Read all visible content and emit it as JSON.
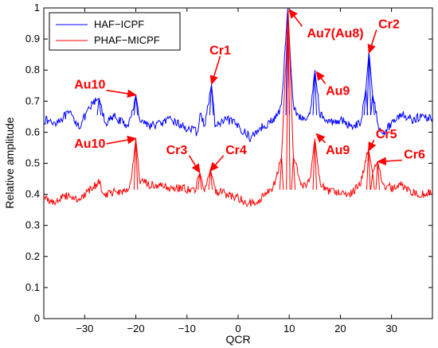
{
  "chart_data": {
    "type": "line",
    "xlabel": "QCR",
    "ylabel": "Relative amplitude",
    "xlim": [
      -38,
      38
    ],
    "ylim": [
      0,
      1
    ],
    "xticks": [
      -30,
      -20,
      -10,
      0,
      10,
      20,
      30
    ],
    "yticks": [
      0,
      0.1,
      0.2,
      0.3,
      0.4,
      0.5,
      0.6,
      0.7,
      0.8,
      0.9,
      1
    ],
    "grid": false,
    "legend_position": "top-left",
    "series": [
      {
        "name": "HAF−ICPF",
        "color": "#0000ff",
        "baseline": 0.635,
        "points": [
          [
            -38,
            0.64
          ],
          [
            -36,
            0.63
          ],
          [
            -33,
            0.66
          ],
          [
            -31,
            0.62
          ],
          [
            -28.5,
            0.69
          ],
          [
            -27.2,
            0.71
          ],
          [
            -26,
            0.63
          ],
          [
            -24,
            0.65
          ],
          [
            -22,
            0.62
          ],
          [
            -21,
            0.64
          ],
          [
            -20,
            0.72
          ],
          [
            -19.2,
            0.64
          ],
          [
            -17,
            0.62
          ],
          [
            -13,
            0.64
          ],
          [
            -11,
            0.62
          ],
          [
            -8,
            0.6
          ],
          [
            -7.3,
            0.66
          ],
          [
            -6.5,
            0.62
          ],
          [
            -5.2,
            0.755
          ],
          [
            -4.5,
            0.62
          ],
          [
            -2,
            0.64
          ],
          [
            0,
            0.62
          ],
          [
            2.5,
            0.58
          ],
          [
            4,
            0.61
          ],
          [
            7,
            0.64
          ],
          [
            8.5,
            0.68
          ],
          [
            9.7,
            1.0
          ],
          [
            10.8,
            0.68
          ],
          [
            12.5,
            0.64
          ],
          [
            14,
            0.65
          ],
          [
            15,
            0.8
          ],
          [
            16,
            0.66
          ],
          [
            17.5,
            0.63
          ],
          [
            20,
            0.64
          ],
          [
            22,
            0.62
          ],
          [
            24,
            0.63
          ],
          [
            25,
            0.74
          ],
          [
            25.6,
            0.86
          ],
          [
            26.3,
            0.72
          ],
          [
            27.5,
            0.62
          ],
          [
            28.6,
            0.6
          ],
          [
            30,
            0.63
          ],
          [
            32,
            0.66
          ],
          [
            34,
            0.64
          ],
          [
            36,
            0.65
          ],
          [
            38,
            0.645
          ]
        ]
      },
      {
        "name": "PHAF−MICPF",
        "color": "#ff0000",
        "baseline": 0.395,
        "points": [
          [
            -38,
            0.39
          ],
          [
            -36,
            0.375
          ],
          [
            -33,
            0.4
          ],
          [
            -31,
            0.38
          ],
          [
            -28.5,
            0.42
          ],
          [
            -27.3,
            0.44
          ],
          [
            -26,
            0.4
          ],
          [
            -24,
            0.41
          ],
          [
            -22,
            0.41
          ],
          [
            -21,
            0.43
          ],
          [
            -20,
            0.58
          ],
          [
            -19.2,
            0.44
          ],
          [
            -17,
            0.43
          ],
          [
            -13,
            0.42
          ],
          [
            -11,
            0.42
          ],
          [
            -8.5,
            0.41
          ],
          [
            -7.5,
            0.47
          ],
          [
            -6.5,
            0.41
          ],
          [
            -5.4,
            0.48
          ],
          [
            -4.5,
            0.41
          ],
          [
            -2,
            0.4
          ],
          [
            0,
            0.39
          ],
          [
            2,
            0.37
          ],
          [
            4,
            0.38
          ],
          [
            7,
            0.43
          ],
          [
            8.5,
            0.52
          ],
          [
            9.8,
            0.99
          ],
          [
            10.8,
            0.52
          ],
          [
            12.5,
            0.43
          ],
          [
            14,
            0.44
          ],
          [
            15,
            0.58
          ],
          [
            16,
            0.44
          ],
          [
            17.5,
            0.41
          ],
          [
            20,
            0.41
          ],
          [
            22,
            0.4
          ],
          [
            24,
            0.44
          ],
          [
            25.5,
            0.545
          ],
          [
            26.3,
            0.47
          ],
          [
            27.3,
            0.505
          ],
          [
            28.3,
            0.43
          ],
          [
            30,
            0.42
          ],
          [
            32,
            0.43
          ],
          [
            34,
            0.41
          ],
          [
            36,
            0.4
          ],
          [
            38,
            0.405
          ]
        ]
      }
    ],
    "annotations": [
      {
        "text": "Au10",
        "x": -20,
        "y": 0.72,
        "text_x": -29,
        "text_y": 0.74
      },
      {
        "text": "Cr1",
        "x": -5.2,
        "y": 0.755,
        "text_x": -3.5,
        "text_y": 0.85
      },
      {
        "text": "Au7(Au8)",
        "x": 10,
        "y": 0.995,
        "text_x": 19,
        "text_y": 0.905
      },
      {
        "text": "Cr2",
        "x": 25.6,
        "y": 0.855,
        "text_x": 29.5,
        "text_y": 0.935
      },
      {
        "text": "Au9",
        "x": 15.3,
        "y": 0.795,
        "text_x": 19.5,
        "text_y": 0.72
      },
      {
        "text": "Au10",
        "x": -20,
        "y": 0.58,
        "text_x": -29,
        "text_y": 0.55
      },
      {
        "text": "Cr3",
        "x": -7.5,
        "y": 0.47,
        "text_x": -12,
        "text_y": 0.53
      },
      {
        "text": "Cr4",
        "x": -5.5,
        "y": 0.475,
        "text_x": -0.4,
        "text_y": 0.53
      },
      {
        "text": "Au9",
        "x": 15.3,
        "y": 0.595,
        "text_x": 19.5,
        "text_y": 0.53
      },
      {
        "text": "Cr5",
        "x": 25.5,
        "y": 0.54,
        "text_x": 29,
        "text_y": 0.58
      },
      {
        "text": "Cr6",
        "x": 27.3,
        "y": 0.505,
        "text_x": 34.5,
        "text_y": 0.515
      }
    ]
  }
}
